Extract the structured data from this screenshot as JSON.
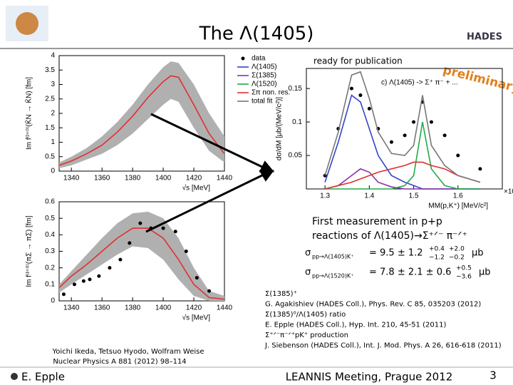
{
  "header": {
    "title": "The Λ(1405)",
    "logo": "HADES"
  },
  "chart_data": [
    {
      "type": "line",
      "xlabel": "√s [MeV]",
      "ylabel": "Im f⁽ᴵ⁼⁰⁾(K̄N → K̄N) [fm]",
      "xlim": [
        1332,
        1440
      ],
      "xticks": [
        1340,
        1360,
        1380,
        1400,
        1420,
        1440
      ],
      "ylim": [
        0,
        4
      ],
      "yticks": [
        0,
        0.5,
        1,
        1.5,
        2,
        2.5,
        3,
        3.5,
        4
      ],
      "x": [
        1332,
        1340,
        1350,
        1360,
        1370,
        1380,
        1390,
        1400,
        1405,
        1410,
        1420,
        1430,
        1440
      ],
      "band": {
        "color": "#b0b0b0",
        "lower": [
          0.1,
          0.2,
          0.4,
          0.6,
          0.9,
          1.3,
          1.8,
          2.3,
          2.5,
          2.4,
          1.5,
          0.7,
          0.3
        ],
        "upper": [
          0.3,
          0.5,
          0.8,
          1.2,
          1.7,
          2.3,
          3.0,
          3.6,
          3.8,
          3.75,
          3.0,
          2.0,
          1.2
        ]
      },
      "series": [
        {
          "color": "#e03030",
          "values": [
            0.2,
            0.35,
            0.6,
            0.9,
            1.35,
            1.9,
            2.55,
            3.1,
            3.3,
            3.25,
            2.3,
            1.3,
            0.6
          ]
        }
      ]
    },
    {
      "type": "line",
      "xlabel": "√s [MeV]",
      "ylabel": "Im f⁽ᴵ⁼⁰⁾(πΣ → πΣ) [fm]",
      "xlim": [
        1332,
        1440
      ],
      "xticks": [
        1340,
        1360,
        1380,
        1400,
        1420,
        1440
      ],
      "ylim": [
        0,
        0.6
      ],
      "yticks": [
        0,
        0.1,
        0.2,
        0.3,
        0.4,
        0.5,
        0.6
      ],
      "x": [
        1332,
        1340,
        1350,
        1360,
        1370,
        1380,
        1390,
        1400,
        1410,
        1420,
        1430,
        1440
      ],
      "band": {
        "color": "#b0b0b0",
        "lower": [
          0.05,
          0.1,
          0.16,
          0.22,
          0.28,
          0.33,
          0.32,
          0.25,
          0.13,
          0.03,
          0,
          0
        ],
        "upper": [
          0.1,
          0.18,
          0.28,
          0.38,
          0.47,
          0.53,
          0.54,
          0.5,
          0.38,
          0.2,
          0.06,
          0.03
        ]
      },
      "series": [
        {
          "color": "#e03030",
          "values": [
            0.08,
            0.15,
            0.22,
            0.3,
            0.38,
            0.44,
            0.44,
            0.38,
            0.25,
            0.1,
            0.02,
            0.01
          ]
        },
        {
          "color": "#000000",
          "style": "points",
          "x": [
            1335,
            1342,
            1348,
            1352,
            1358,
            1365,
            1372,
            1378,
            1385,
            1392,
            1400,
            1408,
            1415,
            1422,
            1430
          ],
          "values": [
            0.04,
            0.1,
            0.12,
            0.13,
            0.15,
            0.2,
            0.25,
            0.35,
            0.47,
            0.44,
            0.44,
            0.42,
            0.3,
            0.14,
            0.06
          ]
        }
      ]
    },
    {
      "type": "line",
      "xlabel": "MM(p,K⁺) [MeV/c²]",
      "x_multiplier": "×10³",
      "ylabel": "dσ/dM [μb/(MeV/c²)]",
      "annotation": "c) Λ(1405) -> Σ⁺ π⁻ + ...",
      "xlim": [
        1.258,
        1.7
      ],
      "xticks": [
        {
          "value": 1.3,
          "label": "1.3"
        },
        {
          "value": 1.4,
          "label": "1.4"
        },
        {
          "value": 1.5,
          "label": "1.5"
        },
        {
          "value": 1.6,
          "label": "1.6"
        }
      ],
      "ylim": [
        0,
        0.18
      ],
      "yticks": [
        0.05,
        {
          "value": 0.1,
          "label": "0.1"
        },
        0.15
      ],
      "x": [
        1.3,
        1.33,
        1.36,
        1.38,
        1.4,
        1.42,
        1.45,
        1.48,
        1.5,
        1.52,
        1.54,
        1.57,
        1.6,
        1.65
      ],
      "series": [
        {
          "name": "data",
          "color": "#000000",
          "style": "points",
          "values": [
            0.02,
            0.09,
            0.15,
            0.14,
            0.12,
            0.09,
            0.07,
            0.08,
            0.1,
            0.13,
            0.1,
            0.08,
            0.05,
            0.03
          ]
        },
        {
          "name": "Λ(1405)",
          "color": "#3344cc",
          "values": [
            0.01,
            0.07,
            0.14,
            0.13,
            0.09,
            0.05,
            0.02,
            0.01,
            0.005,
            0,
            0,
            0,
            0,
            0
          ]
        },
        {
          "name": "Σ(1385)",
          "color": "#8833aa",
          "values": [
            0,
            0.005,
            0.02,
            0.03,
            0.025,
            0.01,
            0.003,
            0,
            0,
            0,
            0,
            0,
            0,
            0
          ]
        },
        {
          "name": "Λ(1520)",
          "color": "#22aa44",
          "values": [
            0,
            0,
            0,
            0,
            0,
            0,
            0,
            0.005,
            0.02,
            0.1,
            0.03,
            0.005,
            0,
            0
          ]
        },
        {
          "name": "Σπ non. res.",
          "color": "#e03030",
          "values": [
            0,
            0.005,
            0.01,
            0.015,
            0.02,
            0.025,
            0.03,
            0.035,
            0.04,
            0.04,
            0.035,
            0.03,
            0.02,
            0.01
          ]
        },
        {
          "name": "total fit",
          "color": "#777777",
          "values": [
            0.02,
            0.085,
            0.17,
            0.175,
            0.135,
            0.085,
            0.053,
            0.05,
            0.065,
            0.14,
            0.065,
            0.035,
            0.02,
            0.01
          ]
        }
      ]
    }
  ],
  "stamps": {
    "ready": "ready for publication",
    "preliminary": "preliminary"
  },
  "measurement": {
    "lines": [
      "First measurement in p+p",
      "reactions of Λ(1405)→Σ⁺ᐟ⁻ π⁻ᐟ⁺"
    ],
    "formulas": [
      {
        "lhs": "σ",
        "sub": "pp→Λ(1405)K⁺",
        "eq": "= 9.5 ± 1.2",
        "sys1": [
          "+0.4",
          "−1.2"
        ],
        "sys2": [
          "+2.0",
          "−0.2"
        ],
        "unit": "μb"
      },
      {
        "lhs": "σ",
        "sub": "pp→Λ(1520)K⁺",
        "eq": "= 7.8 ± 2.1 ± 0.6",
        "sys1": [
          "+0.5",
          "−3.6"
        ],
        "unit": "μb"
      }
    ]
  },
  "references": [
    "Σ(1385)⁺",
    "G. Agakishiev (HADES Coll.), Phys. Rev. C 85, 035203 (2012)",
    "Σ(1385)⁰/Λ(1405) ratio",
    "E. Epple (HADES Coll.), Hyp. Int. 210, 45-51 (2011)",
    "Σ⁺ᐟ⁻π⁻ᐟ⁺pK⁺ production",
    "J. Siebenson (HADES Coll.), Int. J. Mod. Phys. A 26, 616-618 (2011)"
  ],
  "theory_ref": [
    "Yoichi Ikeda, Tetsuo Hyodo, Wolfram Weise",
    "Nuclear Physics A 881 (2012) 98–114"
  ],
  "footer": {
    "author": "E. Epple",
    "event": "LEANNIS Meeting, Prague 2012",
    "page": "3"
  }
}
